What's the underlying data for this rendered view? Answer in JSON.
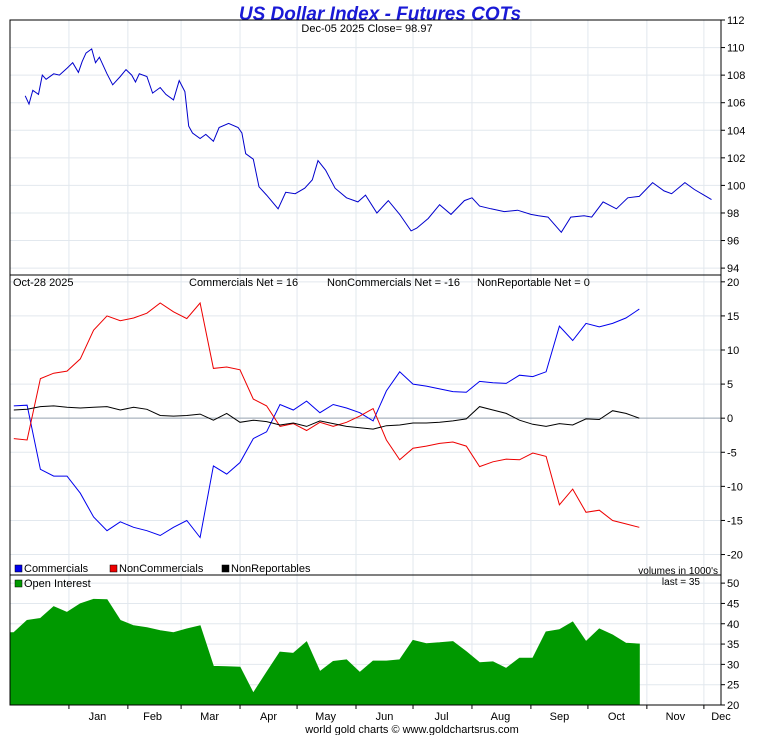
{
  "title": "US Dollar Index - Futures COTs",
  "footer": "world gold charts © www.goldchartsrus.com",
  "colors": {
    "title": "#1a1ad6",
    "price": "#0000cc",
    "commercials": "#0000ee",
    "noncommercials": "#ee0000",
    "nonreportables": "#000000",
    "open_interest": "#009900",
    "grid": "#e2e8ee"
  },
  "chart_data": [
    {
      "type": "line",
      "panel": "price",
      "header": "Dec-05  2025   Close= 98.97",
      "close": 98.97,
      "ylim": [
        93.5,
        112
      ],
      "yticks": [
        "94",
        "96",
        "98",
        "100",
        "102",
        "104",
        "106",
        "108",
        "110",
        "112"
      ],
      "x_months": [
        "Jan",
        "Feb",
        "Mar",
        "Apr",
        "May",
        "Jun",
        "Jul",
        "Aug",
        "Sep",
        "Oct",
        "Nov",
        "Dec"
      ],
      "grid": true,
      "series": [
        {
          "x": [
            "2024-12-09",
            "2024-12-11",
            "2024-12-13",
            "2024-12-16",
            "2024-12-18",
            "2024-12-20",
            "2024-12-24",
            "2024-12-27",
            "2024-12-31",
            "2025-01-03",
            "2025-01-06",
            "2025-01-08",
            "2025-01-10",
            "2025-01-13",
            "2025-01-15",
            "2025-01-17",
            "2025-01-21",
            "2025-01-24",
            "2025-01-28",
            "2025-01-31",
            "2025-02-03",
            "2025-02-05",
            "2025-02-07",
            "2025-02-11",
            "2025-02-14",
            "2025-02-18",
            "2025-02-21",
            "2025-02-25",
            "2025-02-28",
            "2025-03-03",
            "2025-03-05",
            "2025-03-07",
            "2025-03-11",
            "2025-03-14",
            "2025-03-18",
            "2025-03-21",
            "2025-03-26",
            "2025-03-31",
            "2025-04-02",
            "2025-04-04",
            "2025-04-08",
            "2025-04-11",
            "2025-04-15",
            "2025-04-21",
            "2025-04-25",
            "2025-04-30",
            "2025-05-05",
            "2025-05-09",
            "2025-05-12",
            "2025-05-16",
            "2025-05-21",
            "2025-05-27",
            "2025-06-02",
            "2025-06-06",
            "2025-06-12",
            "2025-06-18",
            "2025-06-24",
            "2025-06-30",
            "2025-07-03",
            "2025-07-09",
            "2025-07-15",
            "2025-07-21",
            "2025-07-28",
            "2025-08-01",
            "2025-08-05",
            "2025-08-11",
            "2025-08-18",
            "2025-08-25",
            "2025-09-01",
            "2025-09-05",
            "2025-09-10",
            "2025-09-17",
            "2025-09-22",
            "2025-09-29",
            "2025-10-03",
            "2025-10-09",
            "2025-10-16",
            "2025-10-22",
            "2025-10-28",
            "2025-11-04",
            "2025-11-10",
            "2025-11-14",
            "2025-11-21",
            "2025-11-26",
            "2025-12-01",
            "2025-12-05"
          ],
          "values": [
            106.5,
            105.9,
            106.9,
            106.6,
            108.0,
            107.7,
            108.1,
            108.0,
            108.5,
            108.9,
            108.2,
            109.0,
            109.6,
            109.9,
            108.9,
            109.3,
            108.1,
            107.3,
            107.9,
            108.4,
            108.0,
            107.5,
            108.1,
            107.9,
            106.7,
            107.1,
            106.6,
            106.2,
            107.6,
            106.8,
            104.3,
            103.8,
            103.4,
            103.7,
            103.2,
            104.2,
            104.5,
            104.2,
            103.8,
            102.3,
            101.9,
            99.9,
            99.3,
            98.3,
            99.5,
            99.4,
            99.8,
            100.4,
            101.8,
            101.1,
            99.8,
            99.1,
            98.8,
            99.3,
            98.0,
            98.9,
            97.9,
            96.7,
            96.9,
            97.6,
            98.6,
            97.9,
            98.9,
            99.1,
            98.5,
            98.3,
            98.1,
            98.2,
            97.9,
            97.8,
            97.7,
            96.6,
            97.7,
            97.8,
            97.7,
            98.8,
            98.3,
            99.1,
            99.2,
            100.2,
            99.6,
            99.4,
            100.2,
            99.7,
            99.3,
            98.97
          ]
        }
      ]
    },
    {
      "type": "line",
      "panel": "cot",
      "header": "Oct-28  2025",
      "labels": [
        "Commercials Net = 16",
        "NonCommercials Net = -16",
        "NonReportable Net = 0"
      ],
      "legend": [
        "Commercials",
        "NonCommercials",
        "NonReportables"
      ],
      "legend_placement": "bottom-left",
      "ylim": [
        -23,
        21
      ],
      "yticks": [
        "-20",
        "-15",
        "-10",
        "-5",
        "0",
        "5",
        "10",
        "15",
        "20"
      ],
      "x": [
        "2024-12-03",
        "2024-12-10",
        "2024-12-17",
        "2024-12-24",
        "2024-12-31",
        "2025-01-07",
        "2025-01-14",
        "2025-01-21",
        "2025-01-28",
        "2025-02-04",
        "2025-02-11",
        "2025-02-18",
        "2025-02-25",
        "2025-03-04",
        "2025-03-11",
        "2025-03-18",
        "2025-03-25",
        "2025-04-01",
        "2025-04-08",
        "2025-04-15",
        "2025-04-22",
        "2025-04-29",
        "2025-05-06",
        "2025-05-13",
        "2025-05-20",
        "2025-05-27",
        "2025-06-03",
        "2025-06-10",
        "2025-06-17",
        "2025-06-24",
        "2025-07-01",
        "2025-07-08",
        "2025-07-15",
        "2025-07-22",
        "2025-07-29",
        "2025-08-05",
        "2025-08-12",
        "2025-08-19",
        "2025-08-26",
        "2025-09-02",
        "2025-09-09",
        "2025-09-16",
        "2025-09-23",
        "2025-09-30",
        "2025-10-07",
        "2025-10-14",
        "2025-10-21",
        "2025-10-28"
      ],
      "series": [
        {
          "name": "Commercials",
          "values": [
            1.8,
            1.9,
            -7.5,
            -8.5,
            -8.5,
            -11.0,
            -14.5,
            -16.5,
            -15.2,
            -16.0,
            -16.5,
            -17.2,
            -16.0,
            -15.0,
            -17.5,
            -7.0,
            -8.2,
            -6.5,
            -3.0,
            -2.0,
            2.0,
            1.2,
            2.5,
            0.8,
            2.0,
            1.5,
            0.8,
            -0.4,
            4.0,
            6.8,
            5.0,
            4.7,
            4.3,
            3.9,
            3.8,
            5.4,
            5.2,
            5.1,
            6.3,
            6.1,
            6.8,
            13.5,
            11.4,
            13.9,
            13.4,
            13.9,
            14.7,
            16.0
          ]
        },
        {
          "name": "NonCommercials",
          "values": [
            -3.0,
            -3.2,
            5.8,
            6.6,
            6.9,
            8.7,
            12.9,
            15.0,
            14.3,
            14.7,
            15.4,
            16.9,
            15.6,
            14.6,
            16.9,
            7.3,
            7.5,
            7.1,
            2.8,
            1.8,
            -1.2,
            -0.8,
            -1.8,
            -0.6,
            -1.2,
            -0.6,
            0.3,
            1.4,
            -3.2,
            -6.1,
            -4.4,
            -4.1,
            -3.7,
            -3.5,
            -4.1,
            -7.1,
            -6.4,
            -6.0,
            -6.1,
            -5.1,
            -5.6,
            -12.7,
            -10.4,
            -13.8,
            -13.5,
            -15.0,
            -15.5,
            -16.0
          ]
        },
        {
          "name": "NonReportables",
          "values": [
            1.2,
            1.3,
            1.7,
            1.8,
            1.6,
            1.5,
            1.6,
            1.7,
            1.2,
            1.6,
            1.3,
            0.4,
            0.3,
            0.4,
            0.6,
            -0.3,
            0.7,
            -0.6,
            -0.3,
            -0.5,
            -1.0,
            -0.7,
            -1.2,
            -0.4,
            -0.8,
            -1.2,
            -1.4,
            -1.6,
            -1.1,
            -1.0,
            -0.7,
            -0.7,
            -0.6,
            -0.4,
            -0.1,
            1.7,
            1.2,
            0.7,
            -0.3,
            -0.9,
            -1.2,
            -0.8,
            -1.0,
            -0.1,
            -0.2,
            1.1,
            0.7,
            0.0
          ]
        }
      ]
    },
    {
      "type": "area",
      "panel": "open_interest",
      "legend": [
        "Open Interest"
      ],
      "note1": "volumes in 1000's",
      "note2": "last = 35",
      "last": 35,
      "ylim": [
        20,
        52
      ],
      "yticks": [
        "20",
        "25",
        "30",
        "35",
        "40",
        "45",
        "50"
      ],
      "x": [
        "2024-12-03",
        "2024-12-10",
        "2024-12-17",
        "2024-12-24",
        "2024-12-31",
        "2025-01-07",
        "2025-01-14",
        "2025-01-21",
        "2025-01-28",
        "2025-02-04",
        "2025-02-11",
        "2025-02-18",
        "2025-02-25",
        "2025-03-04",
        "2025-03-11",
        "2025-03-18",
        "2025-03-25",
        "2025-04-01",
        "2025-04-08",
        "2025-04-15",
        "2025-04-22",
        "2025-04-29",
        "2025-05-06",
        "2025-05-13",
        "2025-05-20",
        "2025-05-27",
        "2025-06-03",
        "2025-06-10",
        "2025-06-17",
        "2025-06-24",
        "2025-07-01",
        "2025-07-08",
        "2025-07-15",
        "2025-07-22",
        "2025-07-29",
        "2025-08-05",
        "2025-08-12",
        "2025-08-19",
        "2025-08-26",
        "2025-09-02",
        "2025-09-09",
        "2025-09-16",
        "2025-09-23",
        "2025-09-30",
        "2025-10-07",
        "2025-10-14",
        "2025-10-21",
        "2025-10-28"
      ],
      "series": [
        {
          "name": "Open Interest",
          "values": [
            37.8,
            40.8,
            41.3,
            44.2,
            42.8,
            44.9,
            46.0,
            45.9,
            40.8,
            39.5,
            39.0,
            38.3,
            37.8,
            38.7,
            39.5,
            29.5,
            29.4,
            29.3,
            22.9,
            28.0,
            33.0,
            32.7,
            35.5,
            28.2,
            30.7,
            31.1,
            28.0,
            30.8,
            30.8,
            31.1,
            35.9,
            35.1,
            35.3,
            35.6,
            33.1,
            30.4,
            30.6,
            29.0,
            31.5,
            31.5,
            38.0,
            38.5,
            40.4,
            35.6,
            38.7,
            37.2,
            35.2,
            35.0
          ]
        }
      ]
    }
  ]
}
